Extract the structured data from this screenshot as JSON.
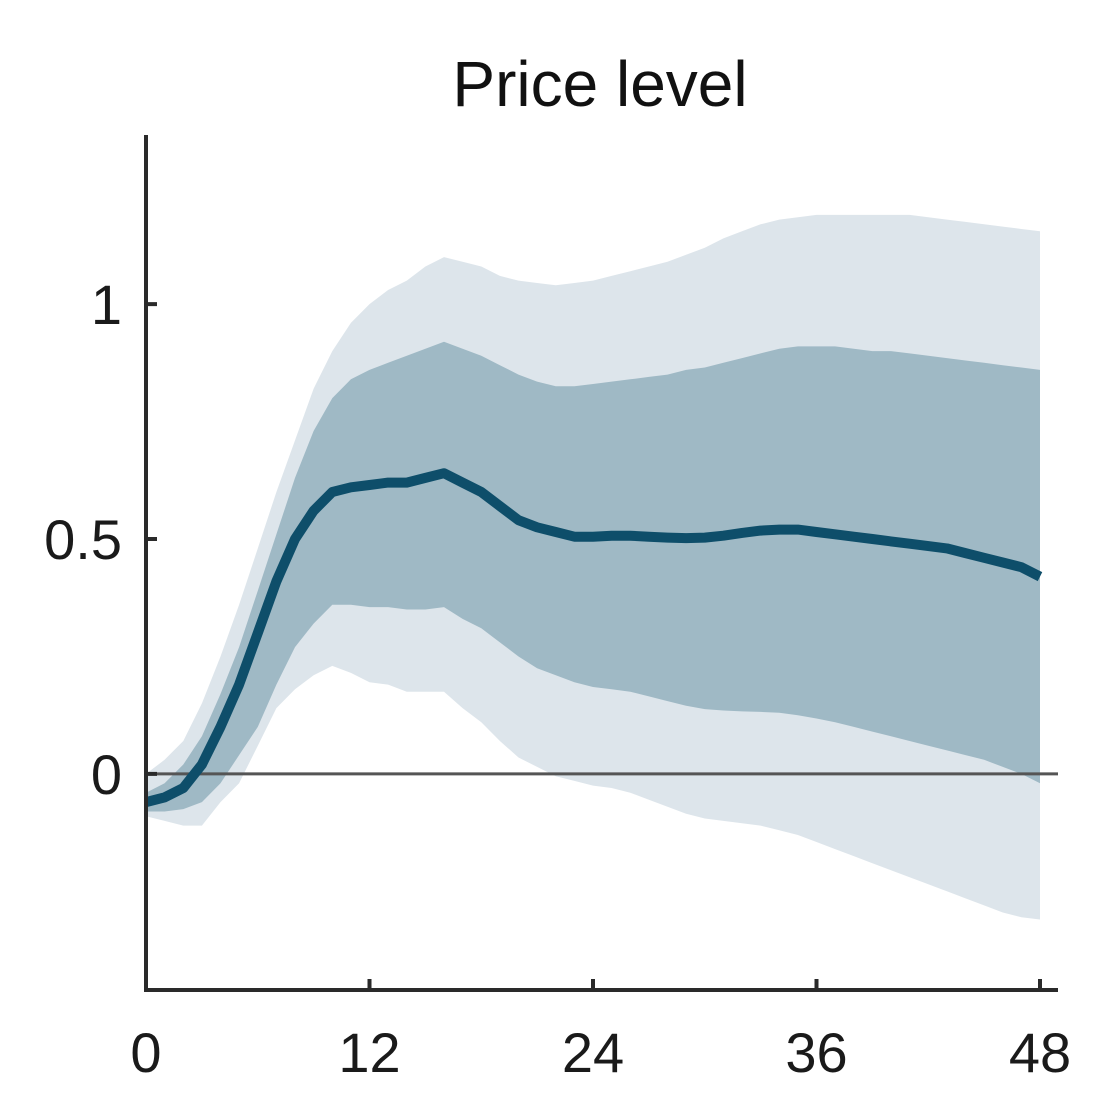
{
  "chart_data": {
    "type": "area",
    "title": "Price level",
    "xlabel": "",
    "ylabel": "",
    "xlim": [
      0,
      48
    ],
    "ylim": [
      -0.46,
      1.36
    ],
    "xticks": [
      0,
      12,
      24,
      36,
      48
    ],
    "xtick_labels": [
      "0",
      "12",
      "24",
      "36",
      "48"
    ],
    "yticks": [
      0,
      0.5,
      1
    ],
    "ytick_labels": [
      "0",
      "0.5",
      "1"
    ],
    "grid": false,
    "legend": "none",
    "zero_line": 0,
    "x": [
      0,
      1,
      2,
      3,
      4,
      5,
      6,
      7,
      8,
      9,
      10,
      11,
      12,
      13,
      14,
      15,
      16,
      17,
      18,
      19,
      20,
      21,
      22,
      23,
      24,
      25,
      26,
      27,
      28,
      29,
      30,
      31,
      32,
      33,
      34,
      35,
      36,
      37,
      38,
      39,
      40,
      41,
      42,
      43,
      44,
      45,
      46,
      47,
      48
    ],
    "series": [
      {
        "role": "median",
        "color": "#0e4e6a",
        "values": [
          -0.06,
          -0.05,
          -0.03,
          0.02,
          0.1,
          0.19,
          0.3,
          0.41,
          0.5,
          0.56,
          0.6,
          0.61,
          0.615,
          0.62,
          0.62,
          0.63,
          0.64,
          0.62,
          0.6,
          0.57,
          0.54,
          0.525,
          0.515,
          0.505,
          0.505,
          0.507,
          0.507,
          0.505,
          0.503,
          0.502,
          0.503,
          0.507,
          0.513,
          0.518,
          0.52,
          0.52,
          0.515,
          0.51,
          0.505,
          0.5,
          0.495,
          0.49,
          0.485,
          0.48,
          0.47,
          0.46,
          0.45,
          0.44,
          0.42
        ]
      }
    ],
    "bands": [
      {
        "role": "outer",
        "color": "#dde5eb",
        "lower": [
          -0.09,
          -0.1,
          -0.11,
          -0.11,
          -0.06,
          -0.02,
          0.06,
          0.14,
          0.18,
          0.21,
          0.23,
          0.215,
          0.195,
          0.19,
          0.175,
          0.175,
          0.175,
          0.14,
          0.11,
          0.07,
          0.035,
          0.015,
          -0.005,
          -0.015,
          -0.025,
          -0.03,
          -0.04,
          -0.055,
          -0.07,
          -0.085,
          -0.095,
          -0.1,
          -0.105,
          -0.11,
          -0.12,
          -0.13,
          -0.145,
          -0.16,
          -0.175,
          -0.19,
          -0.205,
          -0.22,
          -0.235,
          -0.25,
          -0.265,
          -0.28,
          -0.295,
          -0.305,
          -0.31
        ],
        "upper": [
          0.0,
          0.03,
          0.07,
          0.15,
          0.25,
          0.36,
          0.48,
          0.6,
          0.71,
          0.82,
          0.9,
          0.96,
          1.0,
          1.03,
          1.05,
          1.08,
          1.1,
          1.09,
          1.08,
          1.06,
          1.05,
          1.045,
          1.04,
          1.045,
          1.05,
          1.06,
          1.07,
          1.08,
          1.09,
          1.105,
          1.12,
          1.14,
          1.155,
          1.17,
          1.18,
          1.185,
          1.19,
          1.19,
          1.19,
          1.19,
          1.19,
          1.19,
          1.185,
          1.18,
          1.175,
          1.17,
          1.165,
          1.16,
          1.155
        ]
      },
      {
        "role": "inner",
        "color": "#9fb9c5",
        "lower": [
          -0.08,
          -0.08,
          -0.075,
          -0.06,
          -0.02,
          0.04,
          0.1,
          0.19,
          0.27,
          0.32,
          0.36,
          0.36,
          0.355,
          0.355,
          0.35,
          0.35,
          0.355,
          0.33,
          0.31,
          0.28,
          0.25,
          0.225,
          0.21,
          0.195,
          0.185,
          0.18,
          0.175,
          0.165,
          0.155,
          0.145,
          0.138,
          0.135,
          0.133,
          0.132,
          0.13,
          0.125,
          0.118,
          0.11,
          0.1,
          0.09,
          0.08,
          0.07,
          0.06,
          0.05,
          0.04,
          0.03,
          0.015,
          0.0,
          -0.02
        ],
        "upper": [
          -0.04,
          -0.02,
          0.02,
          0.08,
          0.17,
          0.27,
          0.39,
          0.51,
          0.63,
          0.73,
          0.8,
          0.84,
          0.86,
          0.875,
          0.89,
          0.905,
          0.92,
          0.905,
          0.89,
          0.87,
          0.85,
          0.835,
          0.825,
          0.825,
          0.83,
          0.835,
          0.84,
          0.845,
          0.85,
          0.86,
          0.865,
          0.875,
          0.885,
          0.895,
          0.905,
          0.91,
          0.91,
          0.91,
          0.905,
          0.9,
          0.9,
          0.895,
          0.89,
          0.885,
          0.88,
          0.875,
          0.87,
          0.865,
          0.86
        ]
      }
    ],
    "colors": {
      "axis": "#2a2a2a",
      "zero_line": "#555555"
    }
  }
}
